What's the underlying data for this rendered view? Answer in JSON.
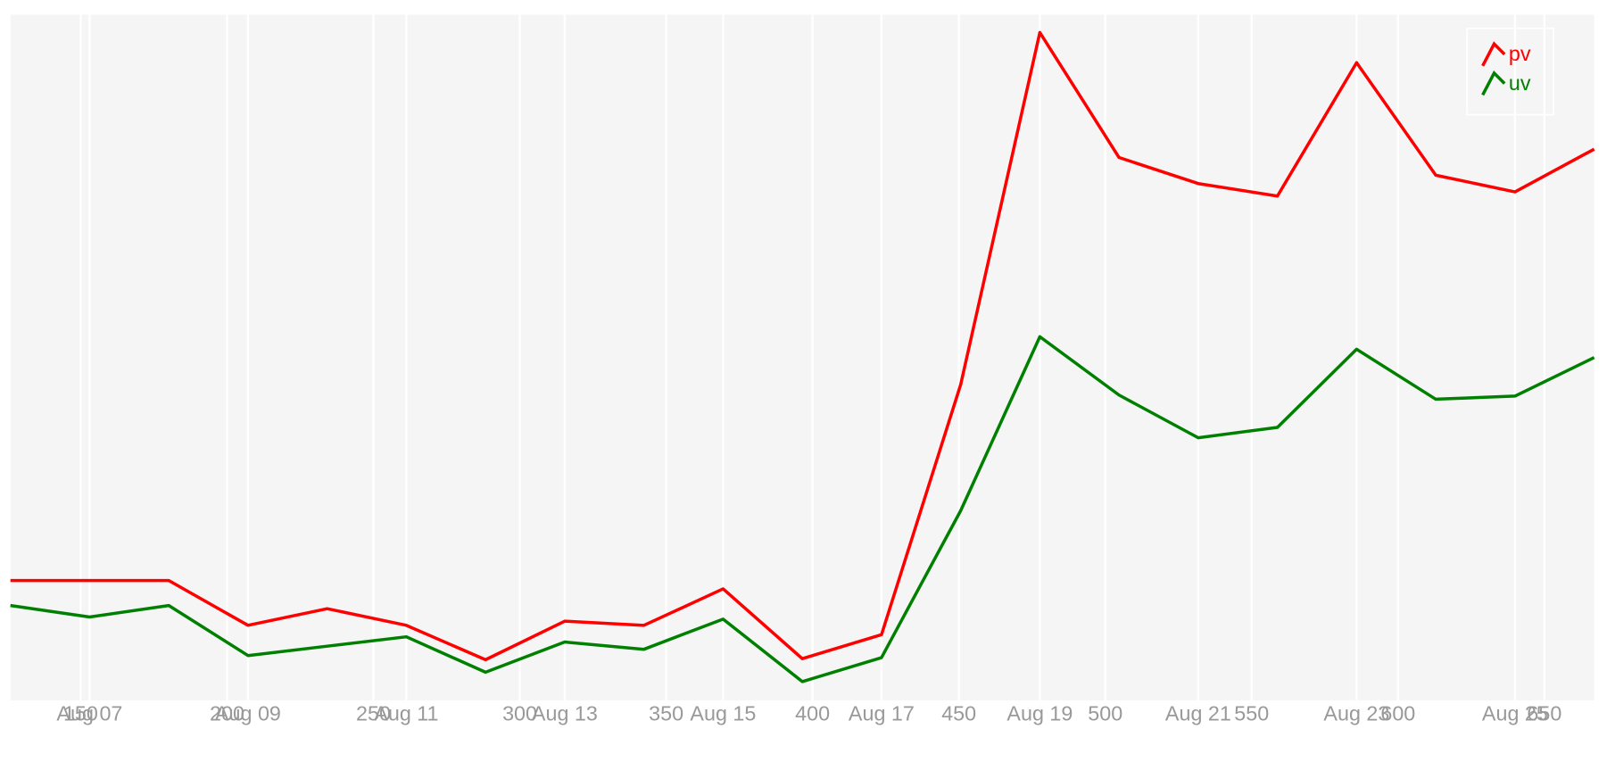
{
  "chart_data": {
    "type": "line",
    "categories": [
      null,
      "Aug 07",
      null,
      "Aug 09",
      null,
      "Aug 11",
      null,
      "Aug 13",
      null,
      "Aug 15",
      null,
      "Aug 17",
      null,
      "Aug 19",
      null,
      "Aug 21",
      null,
      "Aug 23",
      null,
      "Aug 25",
      null
    ],
    "series": [
      {
        "name": "pv",
        "color": "#ff0000",
        "values": [
          115,
          115,
          115,
          72,
          88,
          72,
          39,
          76,
          72,
          107,
          40,
          63,
          303,
          641,
          521,
          496,
          484,
          612,
          504,
          488,
          529
        ]
      },
      {
        "name": "uv",
        "color": "#008000",
        "values": [
          91,
          80,
          91,
          43,
          52,
          61,
          27,
          56,
          49,
          78,
          18,
          41,
          182,
          349,
          293,
          252,
          262,
          337,
          289,
          292,
          329
        ]
      }
    ],
    "ylim": [
      0,
      658
    ],
    "xlim": [
      126,
      667
    ],
    "xticks": [
      150,
      200,
      250,
      300,
      350,
      400,
      450,
      500,
      550,
      600,
      650
    ],
    "grid": true,
    "legend": "top-right"
  }
}
